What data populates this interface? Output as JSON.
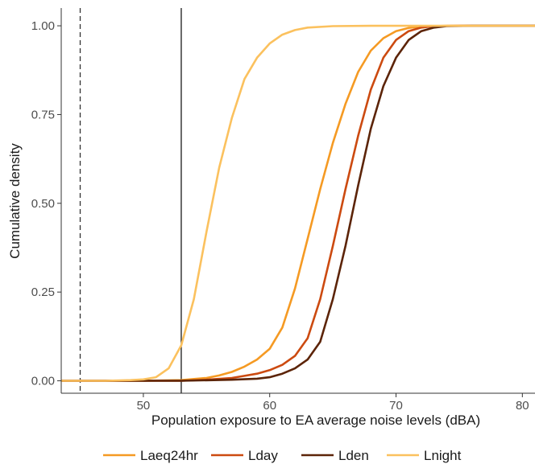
{
  "chart_data": {
    "type": "line",
    "xlabel": "Population exposure to EA average noise levels (dBA)",
    "ylabel": "Cumulative density",
    "xlim": [
      43.5,
      81
    ],
    "ylim": [
      -0.035,
      1.05
    ],
    "x_ticks": [
      50,
      60,
      70,
      80
    ],
    "y_ticks": [
      0.0,
      0.25,
      0.5,
      0.75,
      1.0
    ],
    "x_tick_labels": [
      "50",
      "60",
      "70",
      "80"
    ],
    "y_tick_labels": [
      "0.00",
      "0.25",
      "0.50",
      "0.75",
      "1.00"
    ],
    "grid": false,
    "legend_position": "bottom",
    "reference_lines": [
      {
        "x": 45,
        "style": "dashed",
        "color": "#333333"
      },
      {
        "x": 53,
        "style": "solid",
        "color": "#1a1a1a"
      }
    ],
    "series": [
      {
        "name": "Laeq24hr",
        "color": "#f59a23",
        "points": [
          [
            43.5,
            0.0
          ],
          [
            50,
            0.0
          ],
          [
            53,
            0.002
          ],
          [
            55,
            0.008
          ],
          [
            56,
            0.015
          ],
          [
            57,
            0.025
          ],
          [
            58,
            0.04
          ],
          [
            59,
            0.06
          ],
          [
            60,
            0.09
          ],
          [
            61,
            0.15
          ],
          [
            62,
            0.26
          ],
          [
            63,
            0.4
          ],
          [
            64,
            0.54
          ],
          [
            65,
            0.67
          ],
          [
            66,
            0.78
          ],
          [
            67,
            0.87
          ],
          [
            68,
            0.93
          ],
          [
            69,
            0.965
          ],
          [
            70,
            0.985
          ],
          [
            71,
            0.994
          ],
          [
            72,
            0.998
          ],
          [
            74,
            1.0
          ],
          [
            81,
            1.0
          ]
        ]
      },
      {
        "name": "Lday",
        "color": "#cc4a10",
        "points": [
          [
            43.5,
            0.0
          ],
          [
            53,
            0.0
          ],
          [
            55,
            0.003
          ],
          [
            57,
            0.008
          ],
          [
            58,
            0.014
          ],
          [
            59,
            0.02
          ],
          [
            60,
            0.03
          ],
          [
            61,
            0.045
          ],
          [
            62,
            0.07
          ],
          [
            63,
            0.12
          ],
          [
            64,
            0.23
          ],
          [
            65,
            0.38
          ],
          [
            66,
            0.54
          ],
          [
            67,
            0.69
          ],
          [
            68,
            0.82
          ],
          [
            69,
            0.91
          ],
          [
            70,
            0.96
          ],
          [
            71,
            0.985
          ],
          [
            72,
            0.995
          ],
          [
            73,
            0.999
          ],
          [
            75,
            1.0
          ],
          [
            81,
            1.0
          ]
        ]
      },
      {
        "name": "Lden",
        "color": "#5c2408",
        "points": [
          [
            43.5,
            0.0
          ],
          [
            53,
            0.0
          ],
          [
            57,
            0.003
          ],
          [
            59,
            0.006
          ],
          [
            60,
            0.01
          ],
          [
            61,
            0.02
          ],
          [
            62,
            0.035
          ],
          [
            63,
            0.06
          ],
          [
            64,
            0.11
          ],
          [
            65,
            0.23
          ],
          [
            66,
            0.38
          ],
          [
            67,
            0.55
          ],
          [
            68,
            0.71
          ],
          [
            69,
            0.83
          ],
          [
            70,
            0.91
          ],
          [
            71,
            0.96
          ],
          [
            72,
            0.985
          ],
          [
            73,
            0.995
          ],
          [
            74,
            0.999
          ],
          [
            76,
            1.0
          ],
          [
            81,
            1.0
          ]
        ]
      },
      {
        "name": "Lnight",
        "color": "#fbc15e",
        "points": [
          [
            43.5,
            0.0
          ],
          [
            47,
            0.0
          ],
          [
            49,
            0.002
          ],
          [
            50,
            0.004
          ],
          [
            51,
            0.01
          ],
          [
            52,
            0.035
          ],
          [
            53,
            0.1
          ],
          [
            54,
            0.23
          ],
          [
            55,
            0.42
          ],
          [
            56,
            0.6
          ],
          [
            57,
            0.74
          ],
          [
            58,
            0.85
          ],
          [
            59,
            0.91
          ],
          [
            60,
            0.95
          ],
          [
            61,
            0.975
          ],
          [
            62,
            0.988
          ],
          [
            63,
            0.995
          ],
          [
            65,
            0.999
          ],
          [
            68,
            1.0
          ],
          [
            81,
            1.0
          ]
        ]
      }
    ]
  }
}
